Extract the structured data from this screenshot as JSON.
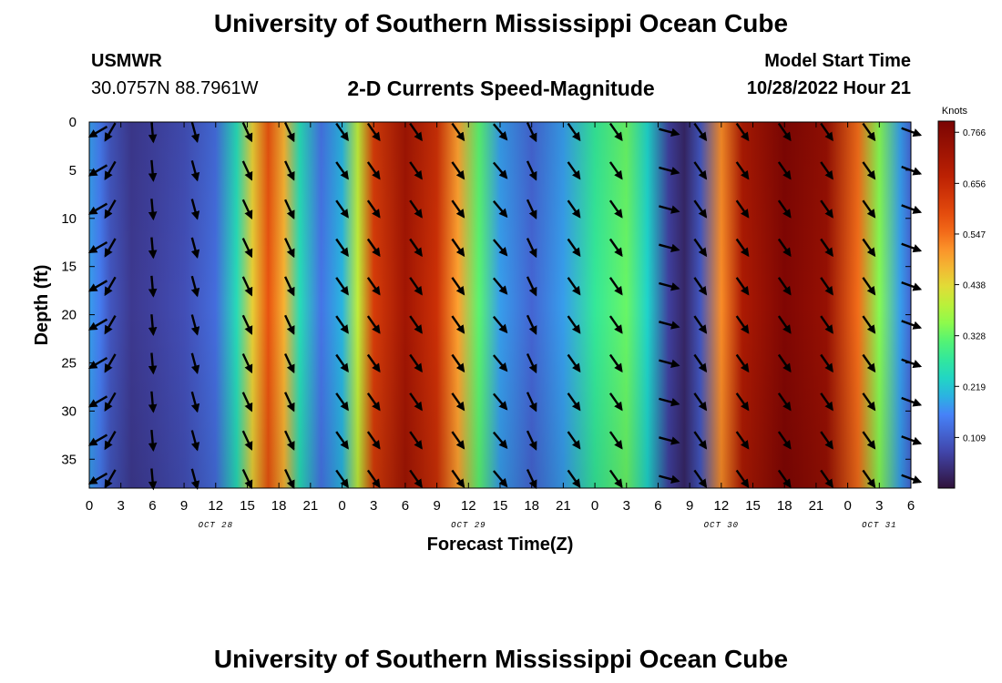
{
  "header": {
    "title": "University of Southern Mississippi Ocean Cube",
    "station": "USMWR",
    "coords": "30.0757N  88.7961W",
    "subtitle": "2-D Currents Speed-Magnitude",
    "start_label": "Model Start Time",
    "start_value": "10/28/2022 Hour 21"
  },
  "footer": {
    "title": "University of Southern Mississippi Ocean Cube"
  },
  "chart_data": {
    "type": "heatmap",
    "title": "2-D Currents Speed-Magnitude",
    "xlabel": "Forecast Time(Z)",
    "ylabel": "Depth (ft)",
    "x_range_hours": [
      0,
      78
    ],
    "y_range_ft": [
      0,
      38
    ],
    "y_inverted": true,
    "x_tick_labels": [
      "0",
      "3",
      "6",
      "9",
      "12",
      "15",
      "18",
      "21",
      "0",
      "3",
      "6",
      "9",
      "12",
      "15",
      "18",
      "21",
      "0",
      "3",
      "6",
      "9",
      "12",
      "15",
      "18",
      "21",
      "0",
      "3",
      "6"
    ],
    "x_tick_hours": [
      0,
      3,
      6,
      9,
      12,
      15,
      18,
      21,
      24,
      27,
      30,
      33,
      36,
      39,
      42,
      45,
      48,
      51,
      54,
      57,
      60,
      63,
      66,
      69,
      72,
      75,
      78
    ],
    "y_ticks": [
      0,
      5,
      10,
      15,
      20,
      25,
      30,
      35
    ],
    "date_labels": [
      {
        "label": "OCT 28",
        "hour": 12
      },
      {
        "label": "OCT 29",
        "hour": 36
      },
      {
        "label": "OCT 30",
        "hour": 60
      },
      {
        "label": "OCT 31",
        "hour": 75
      }
    ],
    "colorbar": {
      "label": "Knots",
      "min": 0.0,
      "max": 0.79,
      "ticks": [
        0.766,
        0.656,
        0.547,
        0.438,
        0.328,
        0.219,
        0.109
      ]
    },
    "speed_profile_knots": [
      {
        "hour": 0,
        "speed": 0.18
      },
      {
        "hour": 1,
        "speed": 0.15
      },
      {
        "hour": 2,
        "speed": 0.1
      },
      {
        "hour": 4,
        "speed": 0.06
      },
      {
        "hour": 6,
        "speed": 0.07
      },
      {
        "hour": 9,
        "speed": 0.09
      },
      {
        "hour": 12,
        "speed": 0.13
      },
      {
        "hour": 14,
        "speed": 0.25
      },
      {
        "hour": 15.5,
        "speed": 0.45
      },
      {
        "hour": 17,
        "speed": 0.58
      },
      {
        "hour": 18.5,
        "speed": 0.48
      },
      {
        "hour": 20,
        "speed": 0.25
      },
      {
        "hour": 22,
        "speed": 0.14
      },
      {
        "hour": 24,
        "speed": 0.2
      },
      {
        "hour": 25.5,
        "speed": 0.4
      },
      {
        "hour": 27,
        "speed": 0.62
      },
      {
        "hour": 30,
        "speed": 0.72
      },
      {
        "hour": 33,
        "speed": 0.64
      },
      {
        "hour": 35,
        "speed": 0.5
      },
      {
        "hour": 37,
        "speed": 0.32
      },
      {
        "hour": 39,
        "speed": 0.18
      },
      {
        "hour": 42,
        "speed": 0.12
      },
      {
        "hour": 45,
        "speed": 0.18
      },
      {
        "hour": 48,
        "speed": 0.28
      },
      {
        "hour": 51,
        "speed": 0.33
      },
      {
        "hour": 53,
        "speed": 0.23
      },
      {
        "hour": 55,
        "speed": 0.07
      },
      {
        "hour": 56.5,
        "speed": 0.03
      },
      {
        "hour": 58,
        "speed": 0.1
      },
      {
        "hour": 60,
        "speed": 0.52
      },
      {
        "hour": 62,
        "speed": 0.7
      },
      {
        "hour": 66,
        "speed": 0.78
      },
      {
        "hour": 70,
        "speed": 0.74
      },
      {
        "hour": 73,
        "speed": 0.55
      },
      {
        "hour": 75,
        "speed": 0.35
      },
      {
        "hour": 77,
        "speed": 0.18
      },
      {
        "hour": 78,
        "speed": 0.12
      }
    ],
    "vector_times_hours": [
      0,
      2,
      6,
      10,
      15,
      19,
      24,
      27,
      31,
      35,
      39,
      42,
      46,
      50,
      55,
      58,
      62,
      66,
      70,
      74,
      78
    ],
    "vector_depths_ft": [
      1,
      5,
      9,
      13,
      17,
      21,
      25,
      29,
      33,
      37
    ],
    "vector_direction_deg_by_time": [
      300,
      330,
      5,
      15,
      25,
      25,
      35,
      35,
      35,
      35,
      40,
      25,
      35,
      35,
      75,
      35,
      35,
      35,
      35,
      35,
      70
    ]
  }
}
